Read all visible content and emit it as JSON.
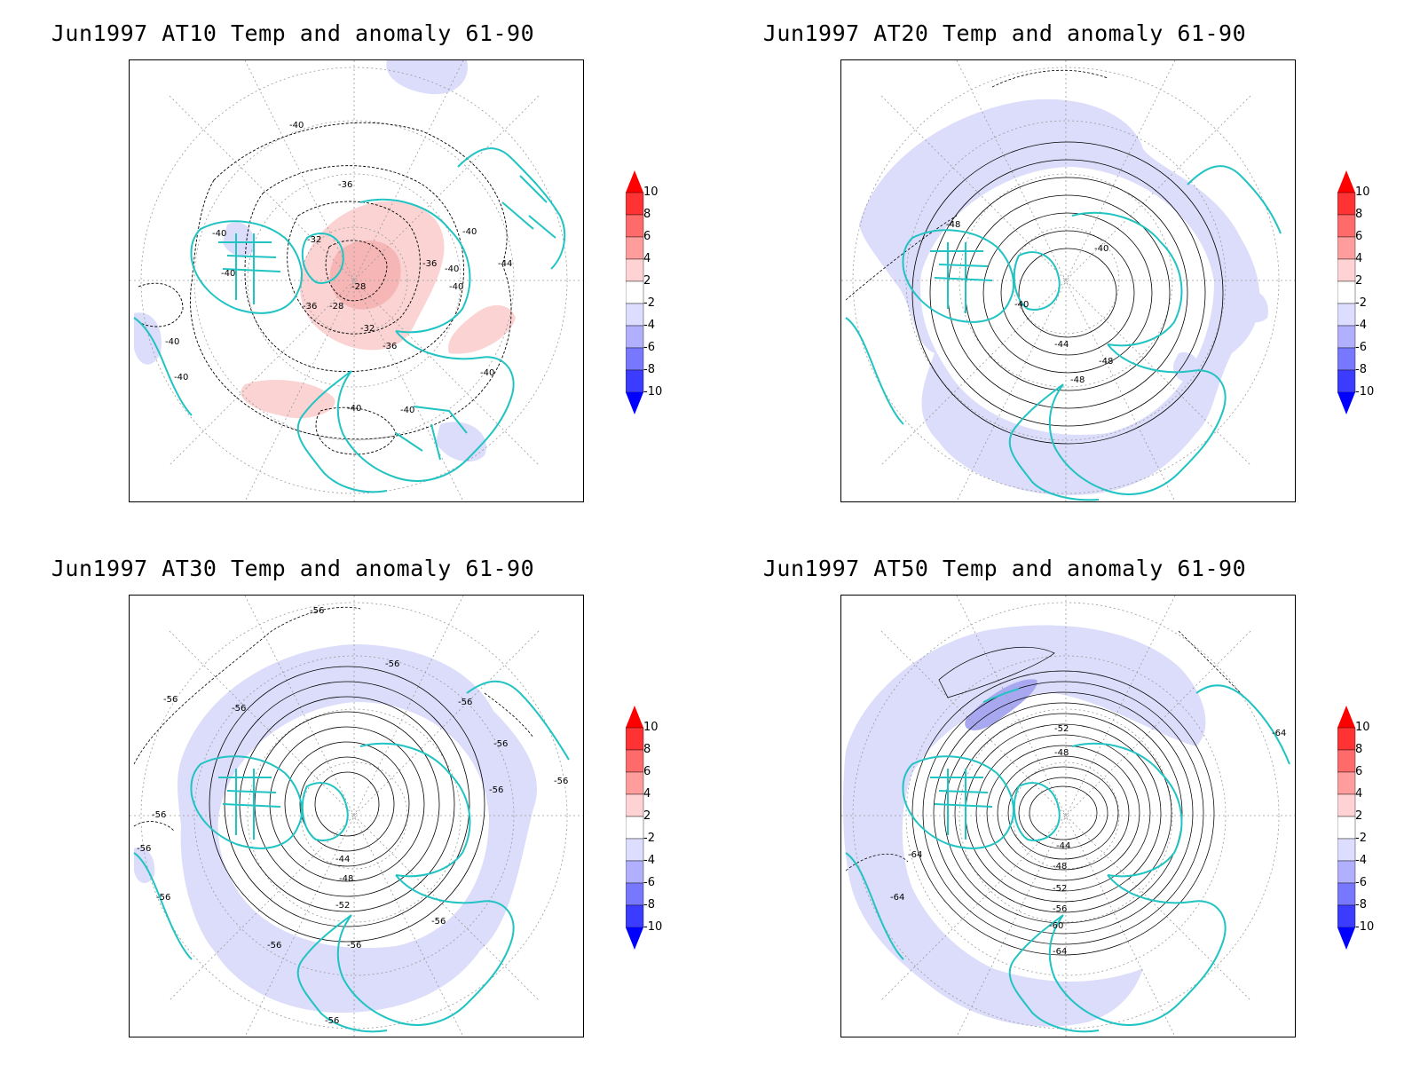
{
  "panels": [
    {
      "id": "at10",
      "title": "Jun1997 AT10 Temp and anomaly 61-90",
      "contour_labels": [
        "-40",
        "-36",
        "-32",
        "-28",
        "-28",
        "-36",
        "-32",
        "-36",
        "-40",
        "-40",
        "-40",
        "-40",
        "-40",
        "-44",
        "-40",
        "-40",
        "-40",
        "-40",
        "-36",
        "-40"
      ],
      "anomaly_patches": [
        "positive",
        "negative"
      ]
    },
    {
      "id": "at20",
      "title": "Jun1997 AT20 Temp and anomaly 61-90",
      "contour_labels": [
        "-40",
        "-40",
        "-44",
        "-48",
        "-48",
        "-48"
      ],
      "anomaly_patches": [
        "negative"
      ]
    },
    {
      "id": "at30",
      "title": "Jun1997 AT30 Temp and anomaly 61-90",
      "contour_labels": [
        "-56",
        "-56",
        "-56",
        "-56",
        "-56",
        "-56",
        "-56",
        "-56",
        "-44",
        "-48",
        "-52",
        "-56",
        "-56",
        "-56",
        "-56",
        "-56",
        "-56",
        "-56"
      ],
      "anomaly_patches": [
        "negative"
      ]
    },
    {
      "id": "at50",
      "title": "Jun1997 AT50 Temp and anomaly 61-90",
      "contour_labels": [
        "-52",
        "-48",
        "-44",
        "-48",
        "-52",
        "-56",
        "-60",
        "-64",
        "-64",
        "-64",
        "-64"
      ],
      "anomaly_patches": [
        "negative"
      ]
    }
  ],
  "colorbar": {
    "labels": [
      "10",
      "8",
      "6",
      "4",
      "2",
      "-2",
      "-4",
      "-6",
      "-8",
      "-10"
    ],
    "colors": [
      "#ff0000",
      "#ff3333",
      "#ff6a6a",
      "#ff9d9d",
      "#ffd3d3",
      "#ffffff",
      "#ddddff",
      "#b0b0ff",
      "#7878ff",
      "#3c3cff",
      "#0000ff"
    ]
  },
  "colors": {
    "coastline": "#22c3c3",
    "contour": "#000000",
    "graticule": "#9a9a9a",
    "positive_anomaly": "#fbd3d3",
    "negative_anomaly": "#dcdcfb",
    "strong_negative_anomaly": "#a8a8f0"
  }
}
